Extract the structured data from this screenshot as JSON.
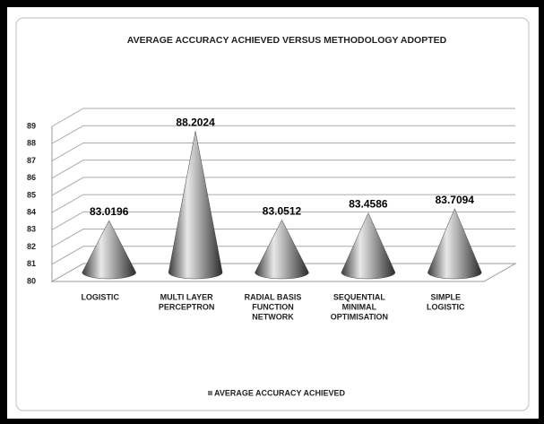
{
  "chart_data": {
    "type": "cone",
    "title": "AVERAGE ACCURACY ACHIEVED VERSUS METHODOLOGY ADOPTED",
    "categories": [
      [
        "LOGISTIC"
      ],
      [
        "MULTI LAYER",
        "PERCEPTRON"
      ],
      [
        "RADIAL BASIS",
        "FUNCTION",
        "NETWORK"
      ],
      [
        "SEQUENTIAL",
        "MINIMAL",
        "OPTIMISATION"
      ],
      [
        "SIMPLE",
        "LOGISTIC"
      ]
    ],
    "series": [
      {
        "name": "AVERAGE ACCURACY ACHIEVED",
        "color": "#7f7f7f",
        "values": [
          83.0196,
          88.2024,
          83.0512,
          83.4586,
          83.7094
        ]
      }
    ],
    "ylim": [
      80,
      89
    ],
    "yticks": [
      80,
      81,
      82,
      83,
      84,
      85,
      86,
      87,
      88,
      89
    ],
    "grid": true,
    "legend": "bottom"
  }
}
